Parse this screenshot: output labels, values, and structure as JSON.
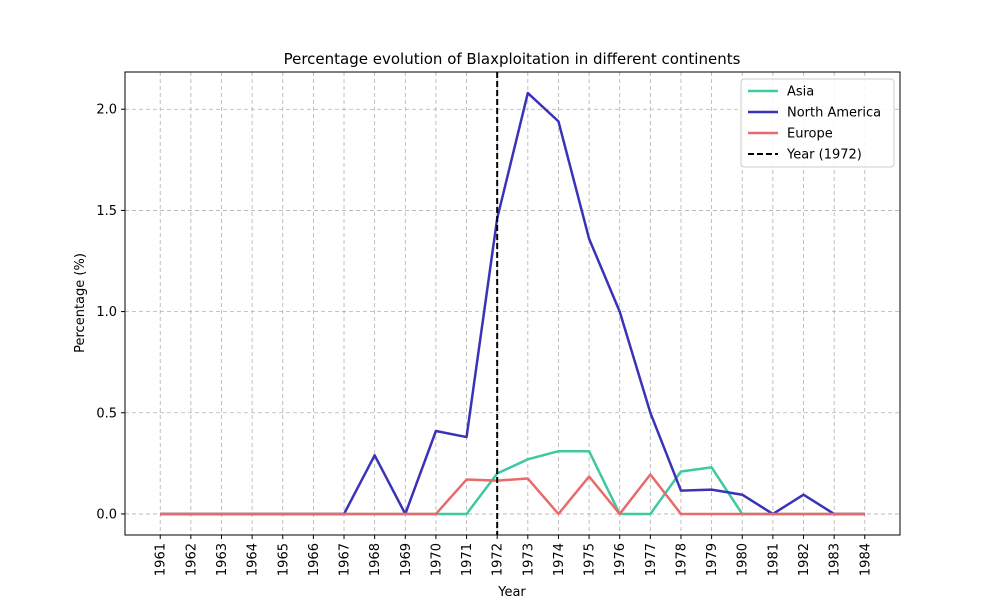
{
  "chart_data": {
    "type": "line",
    "title": "Percentage evolution of Blaxploitation in different continents",
    "xlabel": "Year",
    "ylabel": "Percentage (%)",
    "x": [
      1961,
      1962,
      1963,
      1964,
      1965,
      1966,
      1967,
      1968,
      1969,
      1970,
      1971,
      1972,
      1973,
      1974,
      1975,
      1976,
      1977,
      1978,
      1979,
      1980,
      1981,
      1982,
      1983,
      1984
    ],
    "x_tick_labels": [
      "1961",
      "1962",
      "1963",
      "1964",
      "1965",
      "1966",
      "1967",
      "1968",
      "1969",
      "1970",
      "1971",
      "1972",
      "1973",
      "1974",
      "1975",
      "1976",
      "1977",
      "1978",
      "1979",
      "1980",
      "1981",
      "1982",
      "1983",
      "1984"
    ],
    "y_ticks": [
      0.0,
      0.5,
      1.0,
      1.5,
      2.0
    ],
    "y_tick_labels": [
      "0.0",
      "0.5",
      "1.0",
      "1.5",
      "2.0"
    ],
    "xlim": [
      1959.85,
      1985.15
    ],
    "ylim": [
      -0.104,
      2.184
    ],
    "grid": true,
    "legend_position": "top-right",
    "series": [
      {
        "name": "Asia",
        "color": "#3ec9a0",
        "values": [
          0,
          0,
          0,
          0,
          0,
          0,
          0,
          0,
          0,
          0,
          0,
          0.2,
          0.27,
          0.31,
          0.31,
          0,
          0,
          0.21,
          0.23,
          0,
          0,
          0,
          0,
          0
        ]
      },
      {
        "name": "North America",
        "color": "#3a33b8",
        "values": [
          0,
          0,
          0,
          0,
          0,
          0,
          0,
          0.29,
          0,
          0.41,
          0.38,
          1.46,
          2.08,
          1.94,
          1.36,
          1.0,
          0.5,
          0.115,
          0.12,
          0.095,
          0,
          0.095,
          0,
          0
        ]
      },
      {
        "name": "Europe",
        "color": "#e86a6a",
        "values": [
          0,
          0,
          0,
          0,
          0,
          0,
          0,
          0,
          0,
          0,
          0.17,
          0.165,
          0.175,
          0,
          0.185,
          0,
          0.195,
          0,
          0,
          0,
          0,
          0,
          0,
          0
        ]
      }
    ],
    "reference_line": {
      "x": 1972,
      "label": "Year (1972)",
      "color": "#000000",
      "style": "dashed"
    }
  }
}
